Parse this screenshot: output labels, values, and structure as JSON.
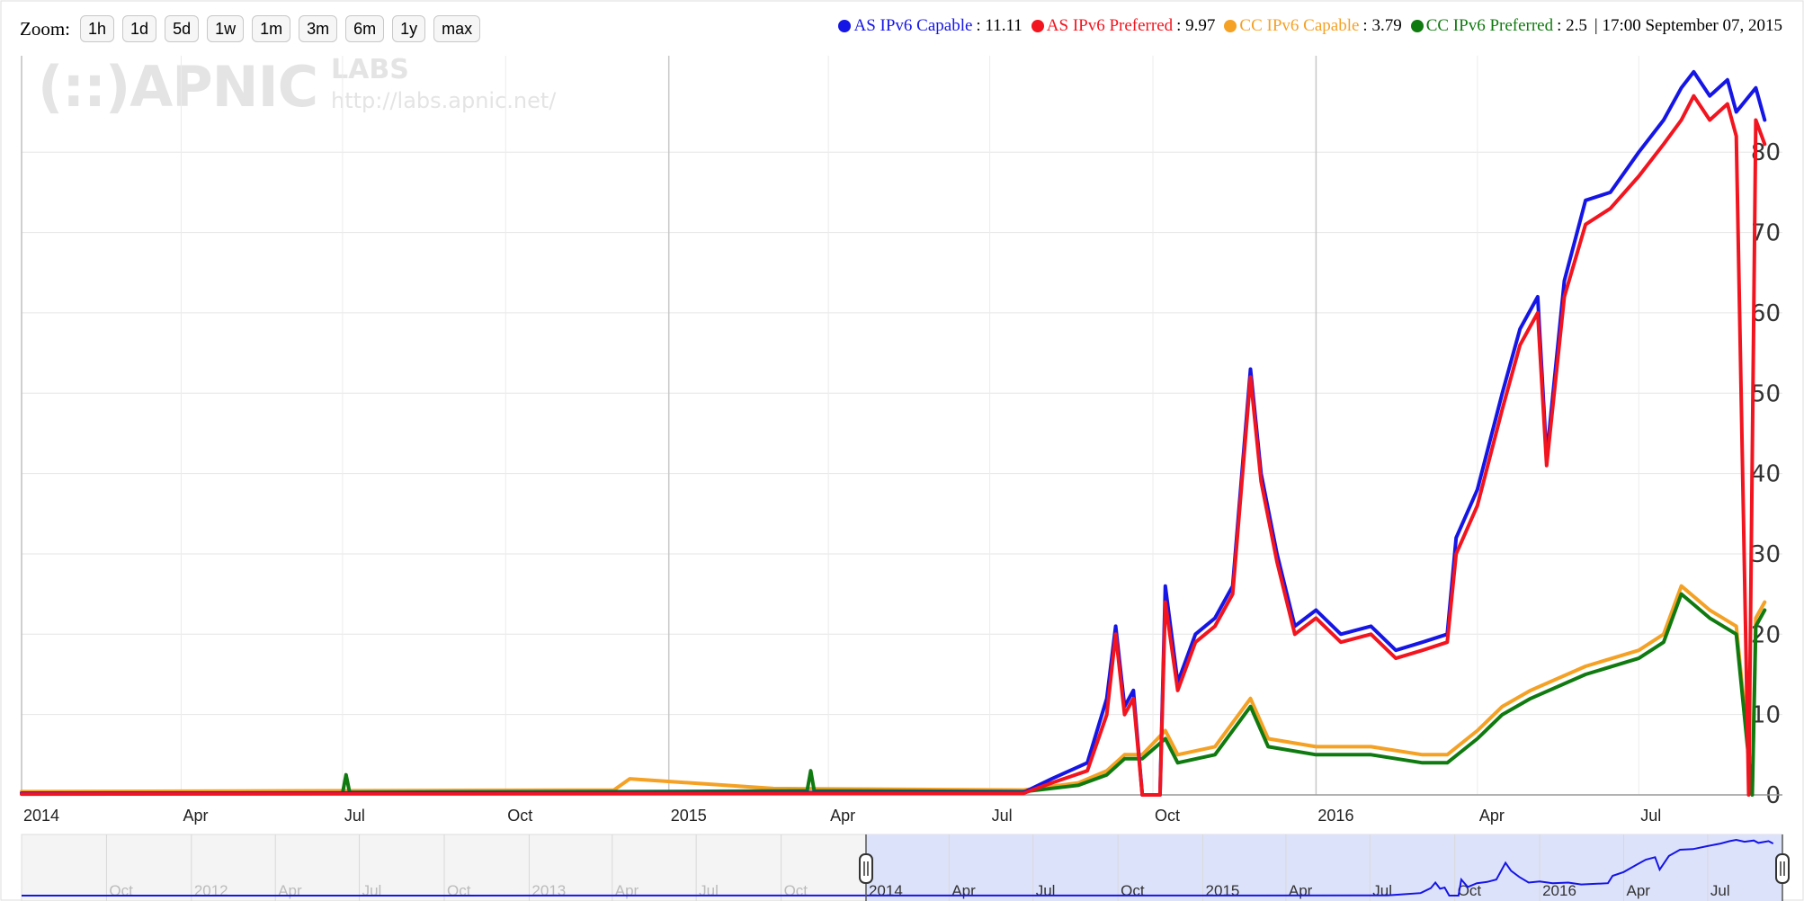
{
  "toolbar": {
    "zoom_label": "Zoom:",
    "buttons": [
      "1h",
      "1d",
      "5d",
      "1w",
      "1m",
      "3m",
      "6m",
      "1y",
      "max"
    ]
  },
  "legend": {
    "items": [
      {
        "name": "AS IPv6 Capable",
        "value": ": 11.11",
        "color": "#1515e6"
      },
      {
        "name": "AS IPv6 Preferred",
        "value": ": 9.97",
        "color": "#f2141e"
      },
      {
        "name": "CC IPv6 Capable",
        "value": ": 3.79",
        "color": "#f4a124"
      },
      {
        "name": "CC IPv6 Preferred",
        "value": ": 2.5",
        "color": "#0f7a0f"
      }
    ],
    "timestamp": "| 17:00 September 07, 2015"
  },
  "watermark": {
    "logo": "(::)APNIC",
    "labs": "LABS",
    "url": "http://labs.apnic.net/"
  },
  "chart_data": {
    "type": "line",
    "x_range": [
      "2014-01-01",
      "2016-09-20"
    ],
    "ylim": [
      0,
      92
    ],
    "yticks": [
      0,
      10,
      20,
      30,
      40,
      50,
      60,
      70,
      80
    ],
    "xticks": [
      {
        "label": "2014",
        "date": "2014-01-01",
        "bold": true
      },
      {
        "label": "Apr",
        "date": "2014-04-01"
      },
      {
        "label": "Jul",
        "date": "2014-07-01"
      },
      {
        "label": "Oct",
        "date": "2014-10-01"
      },
      {
        "label": "2015",
        "date": "2015-01-01",
        "bold": true
      },
      {
        "label": "Apr",
        "date": "2015-04-01"
      },
      {
        "label": "Jul",
        "date": "2015-07-01"
      },
      {
        "label": "Oct",
        "date": "2015-10-01"
      },
      {
        "label": "2016",
        "date": "2016-01-01",
        "bold": true
      },
      {
        "label": "Apr",
        "date": "2016-04-01"
      },
      {
        "label": "Jul",
        "date": "2016-07-01"
      }
    ],
    "grid": true,
    "series": [
      {
        "name": "AS IPv6 Capable",
        "color": "#1515e6",
        "points": [
          [
            "2014-01-01",
            0.2
          ],
          [
            "2015-07-20",
            0.3
          ],
          [
            "2015-08-05",
            2
          ],
          [
            "2015-08-25",
            4
          ],
          [
            "2015-09-05",
            12
          ],
          [
            "2015-09-10",
            21
          ],
          [
            "2015-09-15",
            11
          ],
          [
            "2015-09-20",
            13
          ],
          [
            "2015-09-25",
            0
          ],
          [
            "2015-10-05",
            0
          ],
          [
            "2015-10-08",
            26
          ],
          [
            "2015-10-15",
            14
          ],
          [
            "2015-10-25",
            20
          ],
          [
            "2015-11-05",
            22
          ],
          [
            "2015-11-15",
            26
          ],
          [
            "2015-11-25",
            53
          ],
          [
            "2015-12-01",
            40
          ],
          [
            "2015-12-10",
            30
          ],
          [
            "2015-12-20",
            21
          ],
          [
            "2016-01-01",
            23
          ],
          [
            "2016-01-15",
            20
          ],
          [
            "2016-02-01",
            21
          ],
          [
            "2016-02-15",
            18
          ],
          [
            "2016-03-01",
            19
          ],
          [
            "2016-03-15",
            20
          ],
          [
            "2016-03-20",
            32
          ],
          [
            "2016-04-01",
            38
          ],
          [
            "2016-04-15",
            50
          ],
          [
            "2016-04-25",
            58
          ],
          [
            "2016-05-05",
            62
          ],
          [
            "2016-05-10",
            42
          ],
          [
            "2016-05-20",
            64
          ],
          [
            "2016-06-01",
            74
          ],
          [
            "2016-06-15",
            75
          ],
          [
            "2016-07-01",
            80
          ],
          [
            "2016-07-15",
            84
          ],
          [
            "2016-07-25",
            88
          ],
          [
            "2016-08-01",
            90
          ],
          [
            "2016-08-10",
            87
          ],
          [
            "2016-08-20",
            89
          ],
          [
            "2016-08-25",
            85
          ],
          [
            "2016-09-05",
            88
          ],
          [
            "2016-09-10",
            84
          ]
        ]
      },
      {
        "name": "AS IPv6 Preferred",
        "color": "#f2141e",
        "points": [
          [
            "2014-01-01",
            0.1
          ],
          [
            "2015-07-20",
            0.2
          ],
          [
            "2015-08-05",
            1.5
          ],
          [
            "2015-08-25",
            3
          ],
          [
            "2015-09-05",
            10
          ],
          [
            "2015-09-10",
            20
          ],
          [
            "2015-09-15",
            10
          ],
          [
            "2015-09-20",
            12
          ],
          [
            "2015-09-25",
            0
          ],
          [
            "2015-10-05",
            0
          ],
          [
            "2015-10-08",
            24
          ],
          [
            "2015-10-15",
            13
          ],
          [
            "2015-10-25",
            19
          ],
          [
            "2015-11-05",
            21
          ],
          [
            "2015-11-15",
            25
          ],
          [
            "2015-11-25",
            52
          ],
          [
            "2015-12-01",
            39
          ],
          [
            "2015-12-10",
            29
          ],
          [
            "2015-12-20",
            20
          ],
          [
            "2016-01-01",
            22
          ],
          [
            "2016-01-15",
            19
          ],
          [
            "2016-02-01",
            20
          ],
          [
            "2016-02-15",
            17
          ],
          [
            "2016-03-01",
            18
          ],
          [
            "2016-03-15",
            19
          ],
          [
            "2016-03-20",
            30
          ],
          [
            "2016-04-01",
            36
          ],
          [
            "2016-04-15",
            48
          ],
          [
            "2016-04-25",
            56
          ],
          [
            "2016-05-05",
            60
          ],
          [
            "2016-05-10",
            41
          ],
          [
            "2016-05-20",
            62
          ],
          [
            "2016-06-01",
            71
          ],
          [
            "2016-06-15",
            73
          ],
          [
            "2016-07-01",
            77
          ],
          [
            "2016-07-15",
            81
          ],
          [
            "2016-07-25",
            84
          ],
          [
            "2016-08-01",
            87
          ],
          [
            "2016-08-10",
            84
          ],
          [
            "2016-08-20",
            86
          ],
          [
            "2016-08-25",
            82
          ],
          [
            "2016-09-01",
            0
          ],
          [
            "2016-09-05",
            84
          ],
          [
            "2016-09-10",
            81
          ]
        ]
      },
      {
        "name": "CC IPv6 Capable",
        "color": "#f4a124",
        "points": [
          [
            "2014-01-01",
            0.4
          ],
          [
            "2014-06-01",
            0.5
          ],
          [
            "2014-12-01",
            0.6
          ],
          [
            "2014-12-10",
            2
          ],
          [
            "2015-03-01",
            0.8
          ],
          [
            "2015-07-20",
            0.6
          ],
          [
            "2015-08-20",
            1.5
          ],
          [
            "2015-09-05",
            3
          ],
          [
            "2015-09-15",
            5
          ],
          [
            "2015-09-25",
            5
          ],
          [
            "2015-10-08",
            8
          ],
          [
            "2015-10-15",
            5
          ],
          [
            "2015-11-05",
            6
          ],
          [
            "2015-11-25",
            12
          ],
          [
            "2015-12-05",
            7
          ],
          [
            "2016-01-01",
            6
          ],
          [
            "2016-02-01",
            6
          ],
          [
            "2016-03-01",
            5
          ],
          [
            "2016-03-15",
            5
          ],
          [
            "2016-04-01",
            8
          ],
          [
            "2016-04-15",
            11
          ],
          [
            "2016-05-01",
            13
          ],
          [
            "2016-06-01",
            16
          ],
          [
            "2016-07-01",
            18
          ],
          [
            "2016-07-15",
            20
          ],
          [
            "2016-07-25",
            26
          ],
          [
            "2016-08-10",
            23
          ],
          [
            "2016-08-25",
            21
          ],
          [
            "2016-09-03",
            1
          ],
          [
            "2016-09-05",
            22
          ],
          [
            "2016-09-10",
            24
          ]
        ]
      },
      {
        "name": "CC IPv6 Preferred",
        "color": "#0f7a0f",
        "points": [
          [
            "2014-01-01",
            0.2
          ],
          [
            "2014-07-01",
            0.2
          ],
          [
            "2014-07-03",
            2.5
          ],
          [
            "2014-07-05",
            0.3
          ],
          [
            "2014-12-01",
            0.4
          ],
          [
            "2015-03-20",
            0.5
          ],
          [
            "2015-03-22",
            3
          ],
          [
            "2015-03-24",
            0.5
          ],
          [
            "2015-07-20",
            0.4
          ],
          [
            "2015-08-20",
            1.2
          ],
          [
            "2015-09-05",
            2.5
          ],
          [
            "2015-09-15",
            4.5
          ],
          [
            "2015-09-25",
            4.5
          ],
          [
            "2015-10-08",
            7
          ],
          [
            "2015-10-15",
            4
          ],
          [
            "2015-11-05",
            5
          ],
          [
            "2015-11-25",
            11
          ],
          [
            "2015-12-05",
            6
          ],
          [
            "2016-01-01",
            5
          ],
          [
            "2016-02-01",
            5
          ],
          [
            "2016-03-01",
            4
          ],
          [
            "2016-03-15",
            4
          ],
          [
            "2016-04-01",
            7
          ],
          [
            "2016-04-15",
            10
          ],
          [
            "2016-05-01",
            12
          ],
          [
            "2016-06-01",
            15
          ],
          [
            "2016-07-01",
            17
          ],
          [
            "2016-07-15",
            19
          ],
          [
            "2016-07-25",
            25
          ],
          [
            "2016-08-10",
            22
          ],
          [
            "2016-08-25",
            20
          ],
          [
            "2016-09-03",
            0
          ],
          [
            "2016-09-05",
            21
          ],
          [
            "2016-09-10",
            23
          ]
        ]
      }
    ],
    "navigator": {
      "x_range": [
        "2011-07-01",
        "2016-09-20"
      ],
      "selection": [
        "2014-01-01",
        "2016-09-20"
      ],
      "xticks": [
        {
          "label": "Oct",
          "date": "2011-10-01"
        },
        {
          "label": "2012",
          "date": "2012-01-01"
        },
        {
          "label": "Apr",
          "date": "2012-04-01"
        },
        {
          "label": "Jul",
          "date": "2012-07-01"
        },
        {
          "label": "Oct",
          "date": "2012-10-01"
        },
        {
          "label": "2013",
          "date": "2013-01-01"
        },
        {
          "label": "Apr",
          "date": "2013-04-01"
        },
        {
          "label": "Jul",
          "date": "2013-07-01"
        },
        {
          "label": "Oct",
          "date": "2013-10-01"
        },
        {
          "label": "2014",
          "date": "2014-01-01"
        },
        {
          "label": "Apr",
          "date": "2014-04-01"
        },
        {
          "label": "Jul",
          "date": "2014-07-01"
        },
        {
          "label": "Oct",
          "date": "2014-10-01"
        },
        {
          "label": "2015",
          "date": "2015-01-01"
        },
        {
          "label": "Apr",
          "date": "2015-04-01"
        },
        {
          "label": "Jul",
          "date": "2015-07-01"
        },
        {
          "label": "Oct",
          "date": "2015-10-01"
        },
        {
          "label": "2016",
          "date": "2016-01-01"
        },
        {
          "label": "Apr",
          "date": "2016-04-01"
        },
        {
          "label": "Jul",
          "date": "2016-07-01"
        }
      ]
    }
  }
}
